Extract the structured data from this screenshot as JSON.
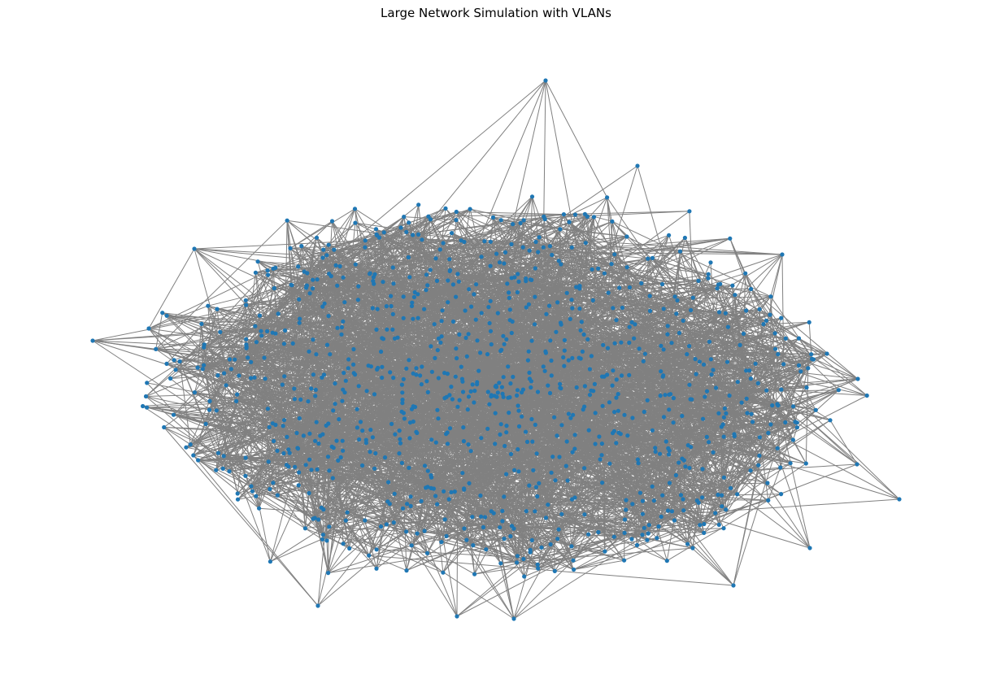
{
  "figure": {
    "title": "Large Network Simulation with VLANs"
  },
  "graph": {
    "type": "network",
    "layout": "spring",
    "node_count": 1000,
    "edge_count": 5000,
    "node_color": "#1f77b4",
    "edge_color": "#808080",
    "axes_visible": false
  }
}
